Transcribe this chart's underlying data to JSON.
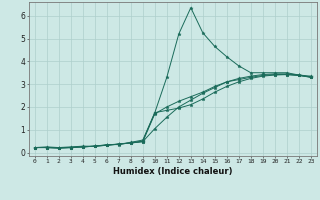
{
  "xlabel": "Humidex (Indice chaleur)",
  "ylabel": "",
  "bg_color": "#cde8e5",
  "grid_color": "#aecfcc",
  "line_color": "#1a6b5a",
  "xlim": [
    -0.5,
    23.5
  ],
  "ylim": [
    -0.15,
    6.6
  ],
  "xticks": [
    0,
    1,
    2,
    3,
    4,
    5,
    6,
    7,
    8,
    9,
    10,
    11,
    12,
    13,
    14,
    15,
    16,
    17,
    18,
    19,
    20,
    21,
    22,
    23
  ],
  "yticks": [
    0,
    1,
    2,
    3,
    4,
    5,
    6
  ],
  "series": [
    [
      0.22,
      0.25,
      0.22,
      0.25,
      0.28,
      0.28,
      0.35,
      0.35,
      0.45,
      0.55,
      1.75,
      3.3,
      5.2,
      6.35,
      5.25,
      4.65,
      4.2,
      3.8,
      3.5,
      3.5,
      3.5,
      3.5,
      3.4,
      3.3
    ],
    [
      0.22,
      0.22,
      0.2,
      0.22,
      0.25,
      0.28,
      0.33,
      0.38,
      0.43,
      0.5,
      1.75,
      1.85,
      1.95,
      2.1,
      2.35,
      2.65,
      2.9,
      3.1,
      3.25,
      3.35,
      3.4,
      3.42,
      3.38,
      3.3
    ],
    [
      0.22,
      0.22,
      0.2,
      0.22,
      0.25,
      0.28,
      0.32,
      0.37,
      0.42,
      0.48,
      1.05,
      1.55,
      2.0,
      2.3,
      2.6,
      2.85,
      3.1,
      3.25,
      3.35,
      3.42,
      3.45,
      3.45,
      3.4,
      3.35
    ],
    [
      0.22,
      0.22,
      0.2,
      0.22,
      0.25,
      0.28,
      0.32,
      0.37,
      0.42,
      0.48,
      1.7,
      2.0,
      2.25,
      2.45,
      2.65,
      2.9,
      3.1,
      3.2,
      3.3,
      3.38,
      3.42,
      3.42,
      3.38,
      3.32
    ]
  ]
}
